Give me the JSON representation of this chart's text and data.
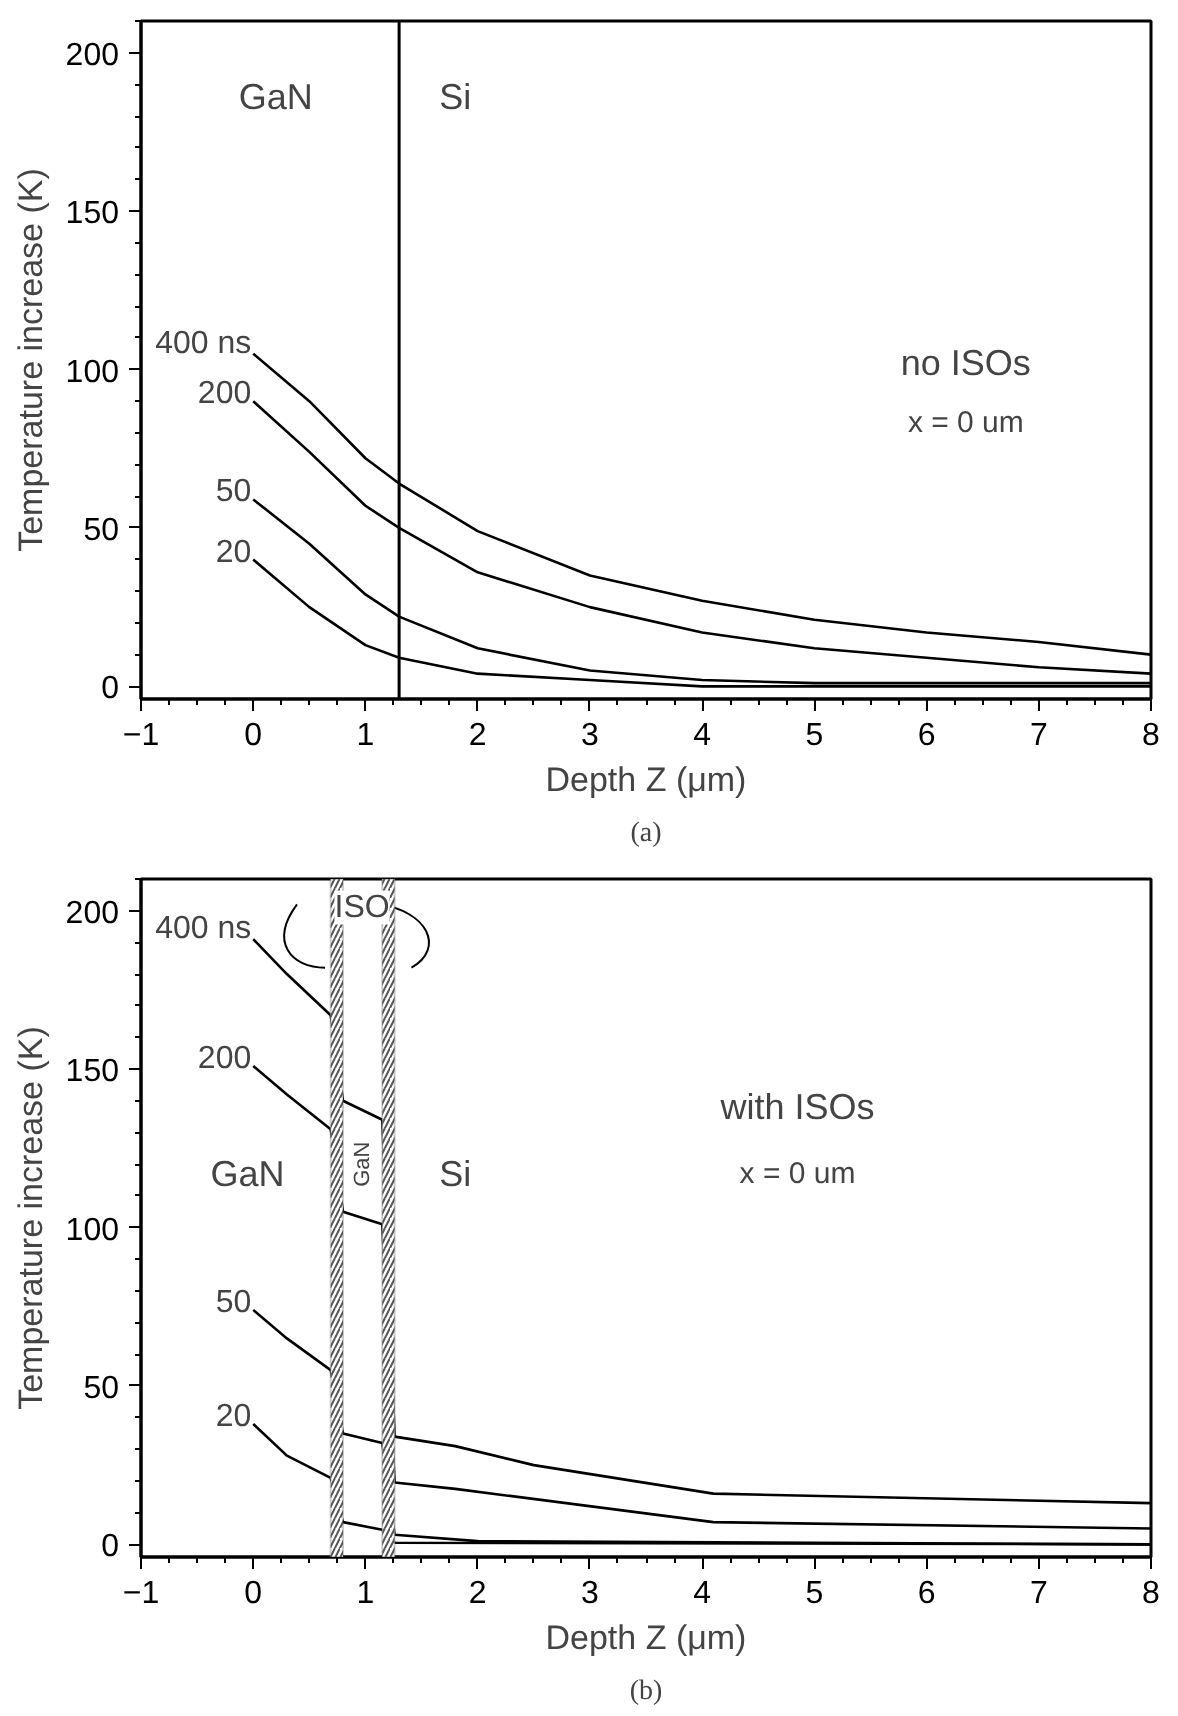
{
  "chart_data": [
    {
      "type": "line",
      "xlabel": "Depth Z (μm)",
      "ylabel": "Temperature increase (K)",
      "xlim": [
        -1,
        8
      ],
      "ylim": [
        -4,
        210
      ],
      "xticks": [
        {
          "value": -1,
          "label": "−1"
        },
        0,
        1,
        2,
        3,
        4,
        5,
        6,
        7,
        8
      ],
      "yticks": [
        0,
        50,
        100,
        150,
        200
      ],
      "series": [
        {
          "name": "400 ns",
          "color": "#000000",
          "x": [
            0,
            0.5,
            1,
            1.3,
            2,
            3,
            4,
            5,
            6,
            7,
            8
          ],
          "values": [
            105,
            90,
            72,
            64,
            49,
            35,
            27,
            21,
            17,
            14,
            10
          ]
        },
        {
          "name": "200",
          "color": "#000000",
          "x": [
            0,
            0.5,
            1,
            1.3,
            2,
            3,
            4,
            5,
            6,
            7,
            8
          ],
          "values": [
            90,
            74,
            57,
            50,
            36,
            25,
            17,
            12,
            9,
            6,
            4
          ]
        },
        {
          "name": "50",
          "color": "#000000",
          "x": [
            0,
            0.5,
            1,
            1.3,
            2,
            3,
            4,
            5,
            6,
            7,
            8
          ],
          "values": [
            59,
            45,
            29,
            22,
            12,
            5,
            2,
            1,
            1,
            1,
            1
          ]
        },
        {
          "name": "20",
          "color": "#000000",
          "x": [
            0,
            0.5,
            1,
            1.3,
            2,
            3,
            4,
            5,
            6,
            7,
            8
          ],
          "values": [
            40,
            25,
            13,
            9,
            4,
            2,
            0,
            0,
            0,
            0,
            0
          ]
        }
      ],
      "ref_lines": [
        {
          "axis": "x",
          "value": 1.3,
          "label": null,
          "color": "#000000"
        }
      ],
      "annotations": [
        "GaN",
        "Si",
        "no ISOs",
        "x = 0 um",
        "(a)"
      ]
    },
    {
      "type": "line",
      "xlabel": "Depth Z (μm)",
      "ylabel": "Temperature increase (K)",
      "xlim": [
        -1,
        8
      ],
      "ylim": [
        -4,
        210
      ],
      "xticks": [
        {
          "value": -1,
          "label": "−1"
        },
        0,
        1,
        2,
        3,
        4,
        5,
        6,
        7,
        8
      ],
      "yticks": [
        0,
        50,
        100,
        150,
        200
      ],
      "series": [
        {
          "name": "400 ns",
          "color": "#000000",
          "x": [
            0,
            0.3,
            0.69,
            0.8,
            1.15,
            1.26,
            1.8,
            2.5,
            4.1,
            8
          ],
          "values": [
            191,
            180,
            167,
            140,
            134,
            34,
            31,
            25,
            16,
            13
          ]
        },
        {
          "name": "200",
          "color": "#000000",
          "x": [
            0,
            0.3,
            0.69,
            0.8,
            1.15,
            1.26,
            1.8,
            4.1,
            8
          ],
          "values": [
            151,
            142,
            131,
            105,
            101,
            19.5,
            17.5,
            7,
            5
          ]
        },
        {
          "name": "50",
          "color": "#000000",
          "x": [
            0,
            0.3,
            0.69,
            0.8,
            1.15,
            1.26,
            2,
            8
          ],
          "values": [
            74,
            65,
            55,
            35,
            32,
            3,
            1,
            0
          ]
        },
        {
          "name": "20",
          "color": "#000000",
          "x": [
            0,
            0.3,
            0.69,
            0.8,
            1.15,
            1.26,
            8
          ],
          "values": [
            38,
            28,
            21,
            7,
            4.6,
            0.5,
            0
          ]
        }
      ],
      "bands": [
        {
          "axis": "x",
          "from": 0.69,
          "to": 0.8,
          "label": null,
          "color": "#555555"
        },
        {
          "axis": "x",
          "from": 1.15,
          "to": 1.26,
          "label": null,
          "color": "#555555"
        }
      ],
      "annotations": [
        "ISO",
        "GaN",
        "GaN",
        "Si",
        "with ISOs",
        "x = 0 um",
        "(b)"
      ]
    }
  ]
}
